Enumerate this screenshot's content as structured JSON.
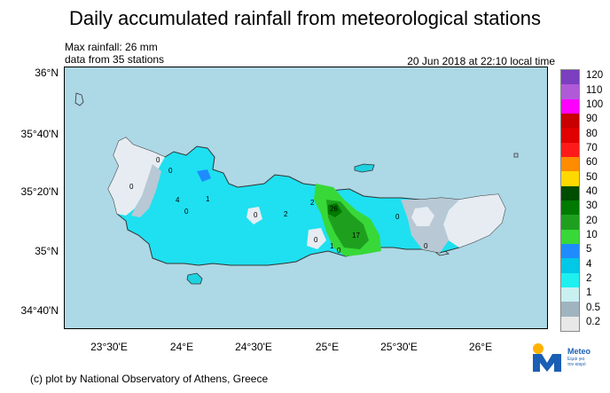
{
  "title": "Daily accumulated rainfall from meteorological stations",
  "info": {
    "max_rainfall": "Max rainfall: 26 mm",
    "stations": "data from 35 stations",
    "timestamp": "20 Jun 2018 at 22:10 local time"
  },
  "axes": {
    "y_labels": [
      "36°N",
      "35°40'N",
      "35°20'N",
      "35°N",
      "34°40'N"
    ],
    "x_labels": [
      "23°30'E",
      "24°E",
      "24°30'E",
      "25°E",
      "25°30'E",
      "26°E"
    ]
  },
  "legend": {
    "labels": [
      "120",
      "110",
      "100",
      "90",
      "80",
      "70",
      "60",
      "50",
      "40",
      "30",
      "20",
      "10",
      "5",
      "4",
      "2",
      "1",
      "0.5",
      "0.2"
    ],
    "colors": [
      "#7b3fbf",
      "#b05ad8",
      "#ff00ff",
      "#c80000",
      "#e00000",
      "#ff1a1a",
      "#ff8c00",
      "#ffd800",
      "#004d00",
      "#007a00",
      "#1ea01e",
      "#38d838",
      "#1e8cff",
      "#00c8e6",
      "#1ef0f0",
      "#c8f0f0",
      "#a0b4c0",
      "#e8e8e8"
    ]
  },
  "map": {
    "station_values": [
      "26",
      "17",
      "4",
      "2",
      "2",
      "1",
      "1",
      "0",
      "0",
      "0",
      "0",
      "0",
      "0",
      "0",
      "0",
      "0"
    ],
    "colors": {
      "sea": "#add8e6",
      "land_dry": "#e6ecf2",
      "land_trace": "#b8c8d4"
    }
  },
  "credit": "(c) plot by National Observatory of Athens, Greece",
  "logo": {
    "name": "Meteo",
    "tagline_1": "Είμαι για",
    "tagline_2": "τον καιρό"
  }
}
